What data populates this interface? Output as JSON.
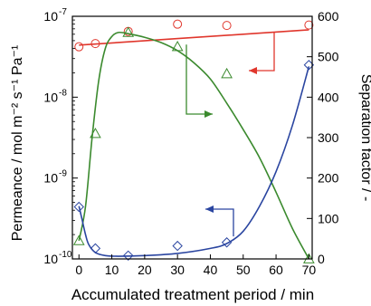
{
  "chart_data": {
    "type": "scatter",
    "xlabel": "Accumulated treatment period / min",
    "ylabel_left": "Permeance / mol m⁻² s⁻¹ Pa⁻¹",
    "ylabel_right": "Separation factor / -",
    "xlim": [
      -2,
      71
    ],
    "xticks": [
      0,
      10,
      20,
      30,
      40,
      50,
      60,
      70
    ],
    "yleft_scale": "log",
    "yleft_lim": [
      1e-10,
      1e-07
    ],
    "yleft_ticks": [
      {
        "value": 1e-10,
        "mantissa": "10",
        "exp": "-10"
      },
      {
        "value": 1e-09,
        "mantissa": "10",
        "exp": "-9"
      },
      {
        "value": 1e-08,
        "mantissa": "10",
        "exp": "-8"
      },
      {
        "value": 1e-07,
        "mantissa": "10",
        "exp": "-7"
      }
    ],
    "yright_lim": [
      0,
      600
    ],
    "yright_ticks": [
      0,
      100,
      200,
      300,
      400,
      500,
      600
    ],
    "series": [
      {
        "color": "#e0362c",
        "marker": "circle",
        "axis": "left",
        "x": [
          0,
          5,
          15,
          30,
          45,
          70
        ],
        "y": [
          4.2e-08,
          4.6e-08,
          6.5e-08,
          8e-08,
          7.7e-08,
          7.8e-08
        ],
        "fit_x": [
          0,
          70
        ],
        "fit_y": [
          4.4e-08,
          6.8e-08
        ]
      },
      {
        "color": "#3b8a2e",
        "marker": "triangle",
        "axis": "right",
        "x": [
          0,
          5,
          15,
          30,
          45,
          70
        ],
        "y": [
          45,
          310,
          560,
          525,
          458,
          0
        ],
        "fit_x": [
          0,
          2,
          4,
          6,
          8,
          10,
          12,
          15,
          20,
          25,
          30,
          35,
          40,
          45,
          50,
          55,
          60,
          65,
          70
        ],
        "fit_y": [
          45,
          130,
          300,
          440,
          520,
          550,
          560,
          557,
          548,
          535,
          515,
          485,
          445,
          385,
          320,
          250,
          165,
          75,
          0
        ]
      },
      {
        "color": "#2a45a0",
        "marker": "diamond",
        "axis": "left",
        "x": [
          0,
          5,
          15,
          30,
          45,
          70
        ],
        "y": [
          4.4e-10,
          1.35e-10,
          1.1e-10,
          1.45e-10,
          1.6e-10,
          2.5e-08
        ],
        "fit_x": [
          0,
          1,
          2,
          3,
          5,
          8,
          12,
          20,
          30,
          40,
          45,
          50,
          55,
          60,
          65,
          70
        ],
        "fit_y": [
          4.5e-10,
          3e-10,
          2e-10,
          1.5e-10,
          1.2e-10,
          1.1e-10,
          1.08e-10,
          1.1e-10,
          1.17e-10,
          1.35e-10,
          1.55e-10,
          2.2e-10,
          4.5e-10,
          1.2e-09,
          4.5e-09,
          2.4e-08
        ]
      }
    ],
    "annotation_arrows": [
      {
        "color": "#e0362c",
        "direction": "left"
      },
      {
        "color": "#3b8a2e",
        "direction": "right"
      },
      {
        "color": "#2a45a0",
        "direction": "left"
      }
    ]
  }
}
